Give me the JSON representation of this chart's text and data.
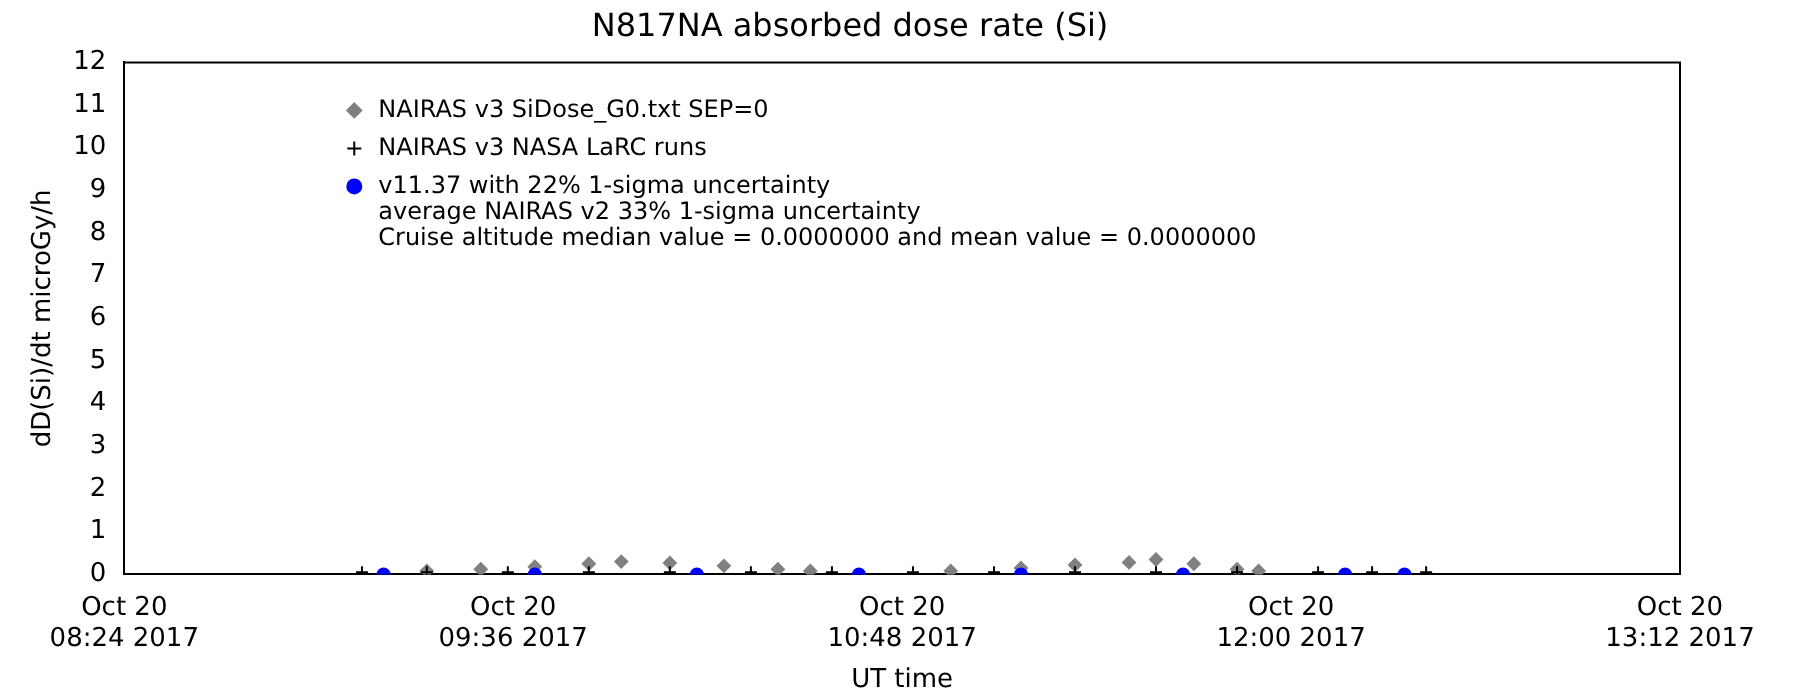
{
  "chart_data": {
    "type": "scatter",
    "title": "N817NA absorbed dose rate (Si)",
    "xlabel": "UT time",
    "ylabel": "dD(Si)/dt microGy/h",
    "xlim": [
      "2017-10-20T08:24",
      "2017-10-20T13:12"
    ],
    "xticks": [
      {
        "value": "2017-10-20T08:24",
        "label": "Oct 20\n08:24 2017"
      },
      {
        "value": "2017-10-20T09:36",
        "label": "Oct 20\n09:36 2017"
      },
      {
        "value": "2017-10-20T10:48",
        "label": "Oct 20\n10:48 2017"
      },
      {
        "value": "2017-10-20T12:00",
        "label": "Oct 20\n12:00 2017"
      },
      {
        "value": "2017-10-20T13:12",
        "label": "Oct 20\n13:12 2017"
      }
    ],
    "ylim": [
      0,
      12
    ],
    "yticks": [
      0,
      1,
      2,
      3,
      4,
      5,
      6,
      7,
      8,
      9,
      10,
      11,
      12
    ],
    "grid": false,
    "legend": "top left",
    "annotations": [
      "average NAIRAS v2 33% 1-sigma uncertainty",
      "Cruise altitude median value = 0.0000000 and mean value = 0.0000000"
    ],
    "series": [
      {
        "name": "NAIRAS v3 SiDose_G0.txt SEP=0",
        "color": "#808080",
        "marker": "diamond",
        "x": [
          "2017-10-20T09:20",
          "2017-10-20T09:30",
          "2017-10-20T09:40",
          "2017-10-20T09:50",
          "2017-10-20T09:56",
          "2017-10-20T10:05",
          "2017-10-20T10:15",
          "2017-10-20T10:25",
          "2017-10-20T10:31",
          "2017-10-20T10:57",
          "2017-10-20T11:10",
          "2017-10-20T11:20",
          "2017-10-20T11:30",
          "2017-10-20T11:35",
          "2017-10-20T11:42",
          "2017-10-20T11:50",
          "2017-10-20T11:54"
        ],
        "values": [
          0.08,
          0.12,
          0.18,
          0.25,
          0.3,
          0.27,
          0.2,
          0.12,
          0.08,
          0.08,
          0.15,
          0.22,
          0.28,
          0.35,
          0.25,
          0.12,
          0.08
        ]
      },
      {
        "name": "NAIRAS v3 NASA LaRC runs",
        "color": "#000000",
        "marker": "cross",
        "x": [
          "2017-10-20T09:08",
          "2017-10-20T09:20",
          "2017-10-20T09:35",
          "2017-10-20T09:50",
          "2017-10-20T10:05",
          "2017-10-20T10:20",
          "2017-10-20T10:35",
          "2017-10-20T10:50",
          "2017-10-20T11:05",
          "2017-10-20T11:20",
          "2017-10-20T11:35",
          "2017-10-20T11:50",
          "2017-10-20T12:05",
          "2017-10-20T12:15",
          "2017-10-20T12:25"
        ],
        "values": [
          0.05,
          0.05,
          0.05,
          0.05,
          0.05,
          0.05,
          0.05,
          0.05,
          0.05,
          0.05,
          0.05,
          0.05,
          0.05,
          0.05,
          0.05
        ]
      },
      {
        "name": "v11.37 with 22% 1-sigma uncertainty",
        "color": "#0000ff",
        "marker": "circle",
        "x": [
          "2017-10-20T09:12",
          "2017-10-20T09:40",
          "2017-10-20T10:10",
          "2017-10-20T10:40",
          "2017-10-20T11:10",
          "2017-10-20T11:40",
          "2017-10-20T12:10",
          "2017-10-20T12:21"
        ],
        "values": [
          0,
          0,
          0,
          0,
          0,
          0,
          0,
          0
        ]
      }
    ]
  }
}
